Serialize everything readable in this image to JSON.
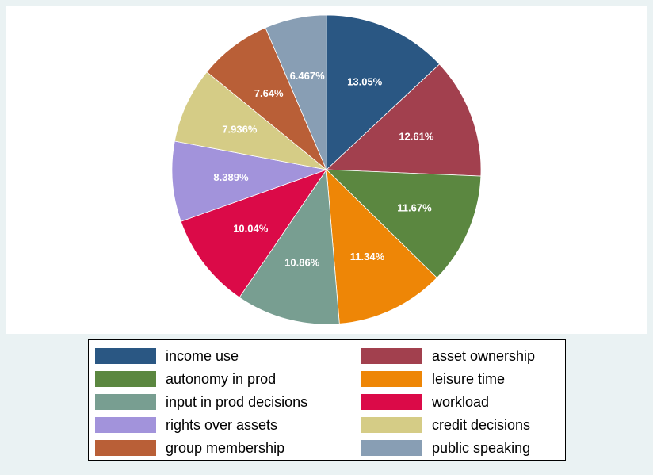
{
  "chart_data": {
    "type": "pie",
    "title": "",
    "legend_position": "bottom",
    "slices": [
      {
        "label": "income use",
        "value": 13.05,
        "display": "13.05%",
        "color": "#2a5783"
      },
      {
        "label": "asset ownership",
        "value": 12.61,
        "display": "12.61%",
        "color": "#a2404e"
      },
      {
        "label": "autonomy in prod",
        "value": 11.67,
        "display": "11.67%",
        "color": "#5b8740"
      },
      {
        "label": "leisure time",
        "value": 11.34,
        "display": "11.34%",
        "color": "#ee8606"
      },
      {
        "label": "input in prod decisions",
        "value": 10.86,
        "display": "10.86%",
        "color": "#789e91"
      },
      {
        "label": "workload",
        "value": 10.04,
        "display": "10.04%",
        "color": "#db0a48"
      },
      {
        "label": "rights over assets",
        "value": 8.389,
        "display": "8.389%",
        "color": "#a293db"
      },
      {
        "label": "credit decisions",
        "value": 7.936,
        "display": "7.936%",
        "color": "#d5cc86"
      },
      {
        "label": "group membership",
        "value": 7.64,
        "display": "7.64%",
        "color": "#b95f37"
      },
      {
        "label": "public speaking",
        "value": 6.467,
        "display": "6.467%",
        "color": "#889eb4"
      }
    ]
  }
}
